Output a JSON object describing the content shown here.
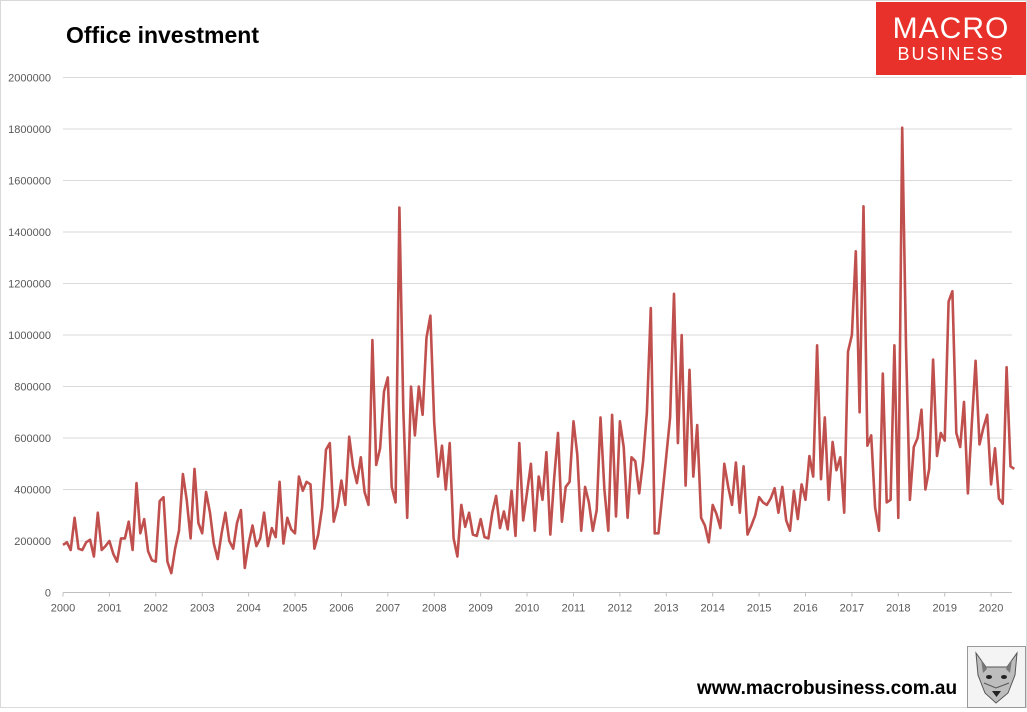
{
  "title": "Office investment",
  "logo": {
    "line1": "MACRO",
    "line2": "BUSINESS",
    "color": "#e8312b"
  },
  "website": "www.macrobusiness.com.au",
  "wolf_icon": "wolf-icon",
  "chart_data": {
    "type": "line",
    "title": "Office investment",
    "xlabel": "",
    "ylabel": "",
    "ylim": [
      0,
      2000000
    ],
    "xlim": [
      2000,
      2020.45
    ],
    "yticks": [
      "0",
      "200000",
      "400000",
      "600000",
      "800000",
      "1000000",
      "1200000",
      "1400000",
      "1600000",
      "1800000",
      "2000000"
    ],
    "xticks": [
      "2000",
      "2001",
      "2002",
      "2003",
      "2004",
      "2005",
      "2006",
      "2007",
      "2008",
      "2009",
      "2010",
      "2011",
      "2012",
      "2013",
      "2014",
      "2015",
      "2016",
      "2017",
      "2018",
      "2019",
      "2020"
    ],
    "grid": true,
    "legend": "none",
    "line_color": "#c0504d",
    "series": [
      {
        "start": 2000.0,
        "step": 0.0833333,
        "values": [
          185000,
          195000,
          165000,
          290000,
          170000,
          165000,
          195000,
          205000,
          140000,
          310000,
          165000,
          180000,
          200000,
          150000,
          120000,
          210000,
          210000,
          275000,
          165000,
          425000,
          230000,
          285000,
          160000,
          125000,
          120000,
          355000,
          370000,
          120000,
          75000,
          170000,
          240000,
          460000,
          360000,
          210000,
          480000,
          270000,
          230000,
          390000,
          310000,
          190000,
          130000,
          230000,
          310000,
          200000,
          170000,
          270000,
          320000,
          95000,
          190000,
          260000,
          180000,
          210000,
          310000,
          180000,
          250000,
          215000,
          430000,
          190000,
          290000,
          245000,
          230000,
          450000,
          395000,
          430000,
          420000,
          170000,
          225000,
          330000,
          555000,
          580000,
          275000,
          335000,
          435000,
          340000,
          605000,
          490000,
          425000,
          525000,
          390000,
          340000,
          980000,
          495000,
          560000,
          780000,
          835000,
          410000,
          350000,
          1495000,
          710000,
          290000,
          800000,
          610000,
          800000,
          690000,
          990000,
          1075000,
          660000,
          450000,
          570000,
          400000,
          580000,
          210000,
          140000,
          340000,
          255000,
          310000,
          225000,
          220000,
          285000,
          215000,
          210000,
          310000,
          375000,
          250000,
          315000,
          245000,
          395000,
          220000,
          580000,
          280000,
          390000,
          500000,
          240000,
          450000,
          360000,
          545000,
          225000,
          440000,
          620000,
          275000,
          410000,
          430000,
          665000,
          535000,
          240000,
          410000,
          350000,
          240000,
          320000,
          680000,
          400000,
          240000,
          690000,
          295000,
          665000,
          565000,
          290000,
          525000,
          510000,
          385000,
          510000,
          700000,
          1105000,
          230000,
          230000,
          380000,
          530000,
          680000,
          1160000,
          580000,
          1000000,
          415000,
          865000,
          450000,
          650000,
          290000,
          260000,
          195000,
          340000,
          305000,
          250000,
          500000,
          410000,
          340000,
          505000,
          310000,
          490000,
          225000,
          260000,
          300000,
          370000,
          350000,
          340000,
          365000,
          405000,
          310000,
          410000,
          280000,
          240000,
          395000,
          285000,
          420000,
          360000,
          530000,
          450000,
          960000,
          440000,
          680000,
          360000,
          585000,
          475000,
          525000,
          310000,
          935000,
          1000000,
          1325000,
          700000,
          1500000,
          570000,
          610000,
          330000,
          240000,
          850000,
          350000,
          360000,
          960000,
          290000,
          1805000,
          960000,
          360000,
          565000,
          600000,
          710000,
          400000,
          480000,
          905000,
          530000,
          620000,
          590000,
          1130000,
          1170000,
          620000,
          565000,
          740000,
          385000,
          655000,
          900000,
          575000,
          640000,
          690000,
          420000,
          560000,
          365000,
          345000,
          875000,
          490000,
          480000
        ]
      }
    ]
  }
}
